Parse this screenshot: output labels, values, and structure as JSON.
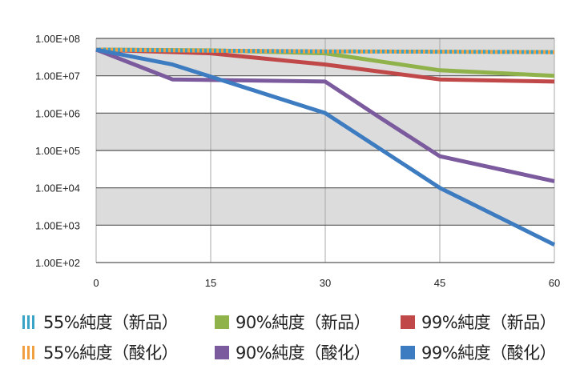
{
  "chart_data": {
    "type": "line",
    "title": "",
    "xlabel": "",
    "ylabel": "",
    "yscale": "log",
    "xlim": [
      0,
      60
    ],
    "ylim": [
      100,
      100000000
    ],
    "x_ticks": [
      0,
      15,
      30,
      45,
      60
    ],
    "x_tick_labels": [
      "0",
      "15",
      "30",
      "45",
      "60"
    ],
    "y_ticks": [
      100,
      1000,
      10000,
      100000,
      1000000,
      10000000,
      100000000
    ],
    "y_tick_labels": [
      "1.00E+02",
      "1.00E+03",
      "1.00E+04",
      "1.00E+05",
      "1.00E+06",
      "1.00E+07",
      "1.00E+08"
    ],
    "grid": true,
    "banded_background": true,
    "legend_position": "bottom",
    "series": [
      {
        "name": "55%純度（新品）",
        "color": "#3aa3c8",
        "style": "dashed",
        "x": [
          0,
          15,
          30,
          45,
          60
        ],
        "y": [
          50000000,
          47000000,
          45000000,
          44000000,
          43000000
        ]
      },
      {
        "name": "55%純度（酸化）",
        "color": "#f0a040",
        "style": "dashed",
        "x": [
          0,
          15,
          30,
          45,
          60
        ],
        "y": [
          50000000,
          47000000,
          45000000,
          44000000,
          43000000
        ]
      },
      {
        "name": "90%純度（新品）",
        "color": "#8fb34a",
        "style": "solid",
        "x": [
          0,
          15,
          30,
          45,
          60
        ],
        "y": [
          50000000,
          48000000,
          40000000,
          14000000,
          10000000
        ]
      },
      {
        "name": "90%純度（酸化）",
        "color": "#7b5b9e",
        "style": "solid",
        "x": [
          0,
          10,
          30,
          37,
          45,
          60
        ],
        "y": [
          50000000,
          8000000,
          7000000,
          800000,
          70000,
          15000
        ]
      },
      {
        "name": "99%純度（新品）",
        "color": "#c04848",
        "style": "solid",
        "x": [
          0,
          15,
          30,
          45,
          60
        ],
        "y": [
          50000000,
          40000000,
          20000000,
          8000000,
          7000000
        ]
      },
      {
        "name": "99%純度（酸化）",
        "color": "#3d7cc0",
        "style": "solid",
        "x": [
          0,
          10,
          30,
          45,
          60
        ],
        "y": [
          50000000,
          20000000,
          1000000,
          10000,
          300
        ]
      }
    ]
  },
  "legend": {
    "items": [
      {
        "label": "55%純度（新品）",
        "color": "#3aa3c8",
        "pattern": "stripes"
      },
      {
        "label": "90%純度（新品）",
        "color": "#8fb34a",
        "pattern": "solid"
      },
      {
        "label": "99%純度（新品）",
        "color": "#c04848",
        "pattern": "solid"
      },
      {
        "label": "55%純度（酸化）",
        "color": "#f0a040",
        "pattern": "stripes"
      },
      {
        "label": "90%純度（酸化）",
        "color": "#7b5b9e",
        "pattern": "solid"
      },
      {
        "label": "99%純度（酸化）",
        "color": "#3d7cc0",
        "pattern": "solid"
      }
    ]
  }
}
